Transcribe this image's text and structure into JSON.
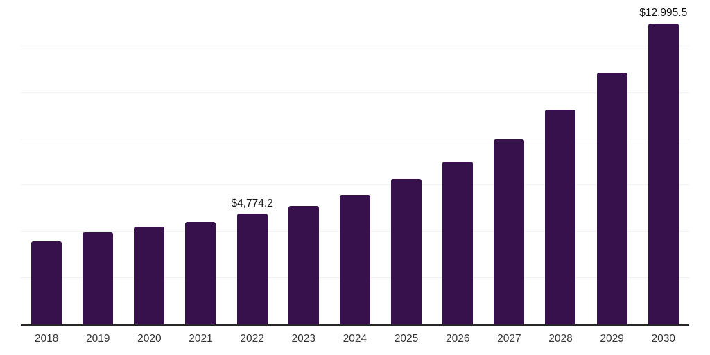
{
  "chart_data": {
    "type": "bar",
    "title": "",
    "xlabel": "",
    "ylabel": "",
    "categories": [
      "2018",
      "2019",
      "2020",
      "2021",
      "2022",
      "2023",
      "2024",
      "2025",
      "2026",
      "2027",
      "2028",
      "2029",
      "2030"
    ],
    "values": [
      3600,
      3990,
      4230,
      4440,
      4774.2,
      5130,
      5600,
      6270,
      7020,
      7990,
      9270,
      10860,
      12995.5
    ],
    "data_labels": {
      "2022": "$4,774.2",
      "2030": "$12,995.5"
    },
    "ylim": [
      0,
      14000
    ],
    "gridline_step": 2000,
    "grid": "horizontal",
    "legend": "none",
    "colors": {
      "bar": "#36114B",
      "gridline": "#f1f1f3",
      "axis_line": "#262626",
      "tick_label": "#333333",
      "data_label": "#111111",
      "background": "#ffffff"
    }
  }
}
